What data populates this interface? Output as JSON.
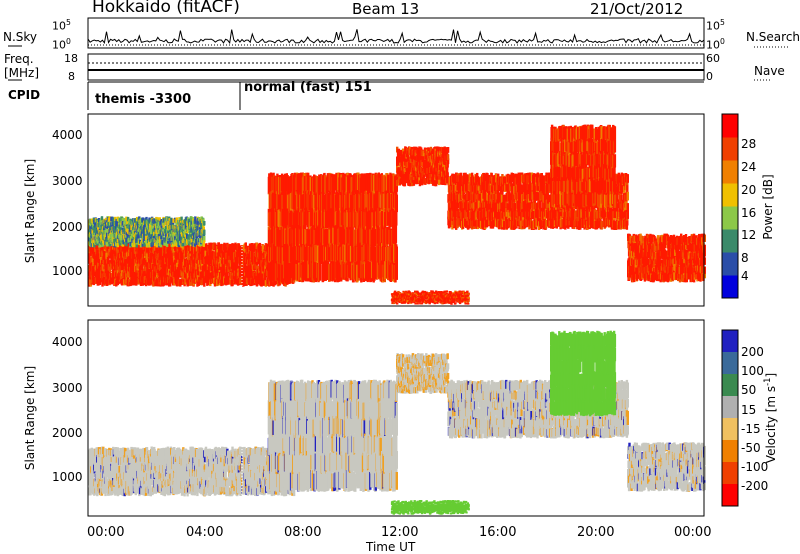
{
  "header": {
    "station": "Hokkaido (fitACF)",
    "beam": "Beam 13",
    "date": "21/Oct/2012"
  },
  "noise_panel": {
    "left_label": "N.Sky",
    "right_label": "N.Search",
    "left_ticks": [
      "10^5",
      "10^0"
    ],
    "right_ticks": [
      "10^5",
      "10^0"
    ]
  },
  "freq_panel": {
    "label_line1": "Freq.",
    "label_line2": "[MHz]",
    "right_label": "Nave",
    "left_ticks": [
      "18",
      "8"
    ],
    "right_ticks": [
      "60",
      "0"
    ]
  },
  "cpid_panel": {
    "label": "CPID",
    "modes": [
      "themis -3300",
      "normal (fast) 151"
    ]
  },
  "colors": {
    "power_scale": [
      "#0000dd",
      "#2a4ea8",
      "#3a8a6a",
      "#8cc848",
      "#f0c000",
      "#f08000",
      "#f04000",
      "#ff0000"
    ],
    "velocity_scale": [
      "#2020c0",
      "#3a6a9a",
      "#3a8a50",
      "#b0b0b0",
      "#f0c060",
      "#f08000",
      "#f04000",
      "#ff0000"
    ],
    "ground_scatter": "#c8c8c0",
    "velocity_positive": "#66cc33",
    "velocity_negative": "#f0a020"
  },
  "chart_data": [
    {
      "type": "heatmap",
      "name": "power",
      "ylabel": "Slant Range [km]",
      "yticks": [
        "1000",
        "2000",
        "3000",
        "4000"
      ],
      "ylim": [
        200,
        4600
      ],
      "xlim": [
        "00:00",
        "24:00"
      ],
      "colorbar": {
        "label": "Power [dB]",
        "ticks": [
          "28",
          "24",
          "20",
          "16",
          "12",
          "8",
          "4"
        ],
        "range": [
          0,
          32
        ]
      },
      "features": [
        {
          "start_hour": 0.0,
          "end_hour": 8.0,
          "range_km": [
            700,
            1600
          ],
          "power_db": 28
        },
        {
          "start_hour": 0.0,
          "end_hour": 4.5,
          "range_km": [
            1600,
            2200
          ],
          "power_db": 14
        },
        {
          "start_hour": 7.0,
          "end_hour": 12.0,
          "range_km": [
            800,
            3200
          ],
          "power_db": 28
        },
        {
          "start_hour": 12.0,
          "end_hour": 14.0,
          "range_km": [
            3000,
            3800
          ],
          "power_db": 28
        },
        {
          "start_hour": 14.0,
          "end_hour": 21.0,
          "range_km": [
            2000,
            3200
          ],
          "power_db": 28
        },
        {
          "start_hour": 21.0,
          "end_hour": 24.0,
          "range_km": [
            800,
            1800
          ],
          "power_db": 28
        },
        {
          "start_hour": 11.8,
          "end_hour": 14.8,
          "range_km": [
            300,
            500
          ],
          "power_db": 28
        },
        {
          "start_hour": 18.0,
          "end_hour": 20.5,
          "range_km": [
            2500,
            4300
          ],
          "power_db": 28
        }
      ]
    },
    {
      "type": "heatmap",
      "name": "velocity",
      "ylabel": "Slant Range [km]",
      "yticks": [
        "1000",
        "2000",
        "3000",
        "4000"
      ],
      "ylim": [
        200,
        4600
      ],
      "xlabel": "Time UT",
      "xticks": [
        "00:00",
        "04:00",
        "08:00",
        "12:00",
        "16:00",
        "20:00",
        "00:00"
      ],
      "xlim": [
        "00:00",
        "24:00"
      ],
      "colorbar": {
        "label": "Velocity [m s^-1]",
        "ticks": [
          "200",
          "100",
          "50",
          "15",
          "-15",
          "-50",
          "-100",
          "-200"
        ],
        "range": [
          -250,
          250
        ]
      },
      "features": [
        {
          "start_hour": 0.0,
          "end_hour": 8.0,
          "range_km": [
            700,
            1700
          ],
          "velocity": 0
        },
        {
          "start_hour": 7.0,
          "end_hour": 12.0,
          "range_km": [
            800,
            3200
          ],
          "velocity": 0
        },
        {
          "start_hour": 12.0,
          "end_hour": 14.0,
          "range_km": [
            3000,
            3800
          ],
          "velocity": -20
        },
        {
          "start_hour": 14.0,
          "end_hour": 21.0,
          "range_km": [
            2000,
            3200
          ],
          "velocity": 0
        },
        {
          "start_hour": 21.0,
          "end_hour": 24.0,
          "range_km": [
            800,
            1800
          ],
          "velocity": 0
        },
        {
          "start_hour": 11.8,
          "end_hour": 14.8,
          "range_km": [
            300,
            500
          ],
          "velocity": 60
        },
        {
          "start_hour": 18.0,
          "end_hour": 20.5,
          "range_km": [
            2500,
            4300
          ],
          "velocity": 60
        }
      ]
    }
  ]
}
